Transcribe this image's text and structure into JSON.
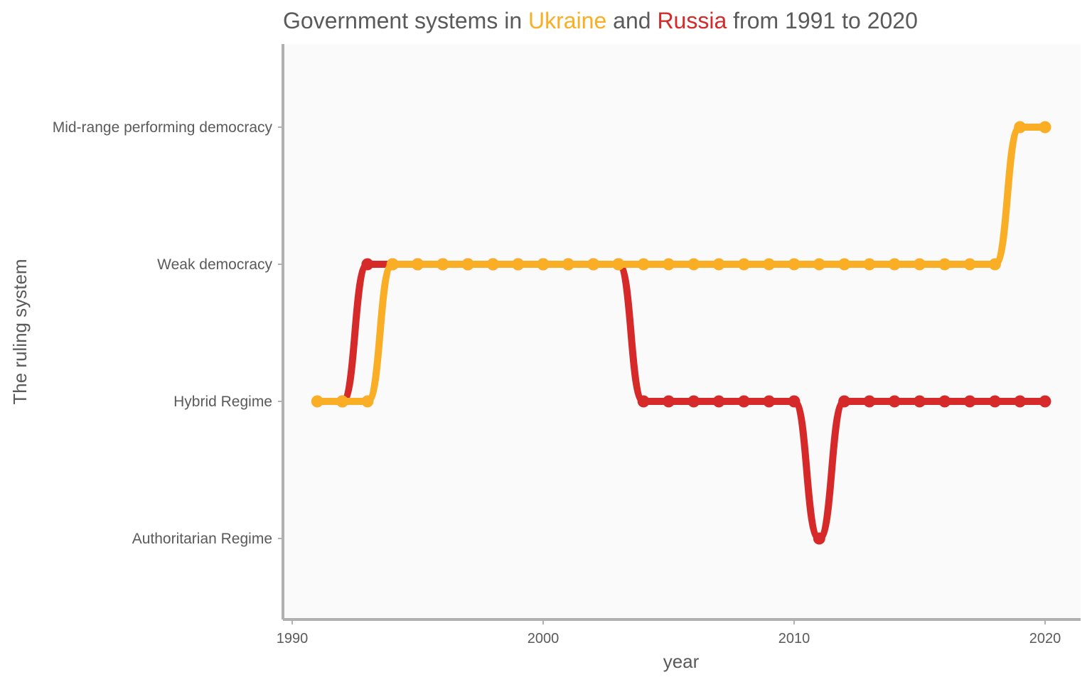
{
  "chart_data": {
    "type": "line",
    "title": {
      "prefix": "Government systems in ",
      "series1": "Ukraine",
      "middle": "  and ",
      "series2": "Russia",
      "suffix": " from 1991 to 2020"
    },
    "xlabel": "year",
    "ylabel": "The ruling system",
    "xlim": [
      1990,
      2020
    ],
    "xticks": [
      1990,
      2000,
      2010,
      2020
    ],
    "categories_y": [
      "Authoritarian Regime",
      "Hybrid Regime",
      "Weak democracy",
      "Mid-range performing democracy"
    ],
    "grid": false,
    "legend": "none (series named in title)",
    "colors": {
      "Ukraine": "#f9ae25",
      "Russia": "#d62a2a",
      "panel": "#fafafa",
      "axis": "#b0b0b0",
      "text": "#5a5a5a"
    },
    "series": [
      {
        "name": "Russia",
        "x": [
          1992,
          1993,
          1994,
          1995,
          1996,
          1997,
          1998,
          1999,
          2000,
          2001,
          2002,
          2003,
          2004,
          2005,
          2006,
          2007,
          2008,
          2009,
          2010,
          2011,
          2012,
          2013,
          2014,
          2015,
          2016,
          2017,
          2018,
          2019,
          2020
        ],
        "values": [
          "Hybrid Regime",
          "Weak democracy",
          "Weak democracy",
          "Weak democracy",
          "Weak democracy",
          "Weak democracy",
          "Weak democracy",
          "Weak democracy",
          "Weak democracy",
          "Weak democracy",
          "Weak democracy",
          "Weak democracy",
          "Hybrid Regime",
          "Hybrid Regime",
          "Hybrid Regime",
          "Hybrid Regime",
          "Hybrid Regime",
          "Hybrid Regime",
          "Hybrid Regime",
          "Authoritarian Regime",
          "Hybrid Regime",
          "Hybrid Regime",
          "Hybrid Regime",
          "Hybrid Regime",
          "Hybrid Regime",
          "Hybrid Regime",
          "Hybrid Regime",
          "Hybrid Regime",
          "Hybrid Regime"
        ]
      },
      {
        "name": "Ukraine",
        "x": [
          1991,
          1992,
          1993,
          1994,
          1995,
          1996,
          1997,
          1998,
          1999,
          2000,
          2001,
          2002,
          2003,
          2004,
          2005,
          2006,
          2007,
          2008,
          2009,
          2010,
          2011,
          2012,
          2013,
          2014,
          2015,
          2016,
          2017,
          2018,
          2019,
          2020
        ],
        "values": [
          "Hybrid Regime",
          "Hybrid Regime",
          "Hybrid Regime",
          "Weak democracy",
          "Weak democracy",
          "Weak democracy",
          "Weak democracy",
          "Weak democracy",
          "Weak democracy",
          "Weak democracy",
          "Weak democracy",
          "Weak democracy",
          "Weak democracy",
          "Weak democracy",
          "Weak democracy",
          "Weak democracy",
          "Weak democracy",
          "Weak democracy",
          "Weak democracy",
          "Weak democracy",
          "Weak democracy",
          "Weak democracy",
          "Weak democracy",
          "Weak democracy",
          "Weak democracy",
          "Weak democracy",
          "Weak democracy",
          "Weak democracy",
          "Mid-range performing democracy",
          "Mid-range performing democracy"
        ]
      }
    ]
  }
}
